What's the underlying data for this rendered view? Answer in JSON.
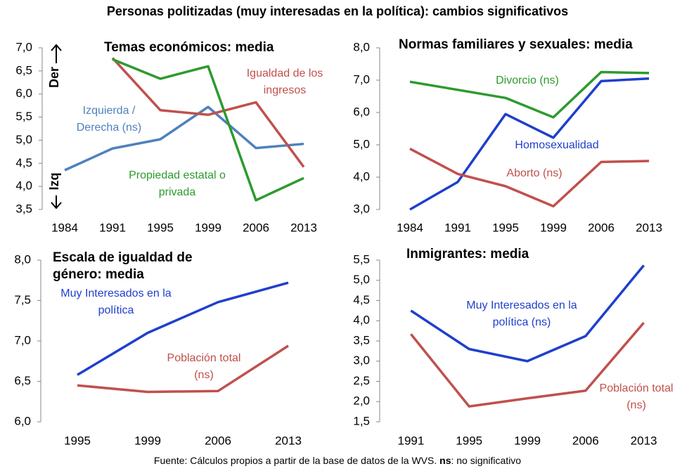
{
  "title": "Personas politizadas (muy interesadas en la política): cambios significativos",
  "chart_data": [
    {
      "type": "line",
      "title": "Temas económicos: media",
      "annotations": [
        "Der",
        "Izq"
      ],
      "categories": [
        "1984",
        "1991",
        "1995",
        "1999",
        "2006",
        "2013"
      ],
      "series": [
        {
          "name": "Izquierda / Derecha (ns)",
          "color": "#4f81bd",
          "values": [
            4.35,
            4.82,
            5.02,
            5.72,
            4.83,
            4.92
          ]
        },
        {
          "name": "Igualdad de los ingresos",
          "color": "#c0504d",
          "values": [
            null,
            6.78,
            5.65,
            5.55,
            5.82,
            4.42
          ]
        },
        {
          "name": "Propiedad estatal o privada",
          "color": "#2e9a2e",
          "values": [
            null,
            6.75,
            6.33,
            6.6,
            3.7,
            4.18
          ]
        }
      ],
      "ylim": [
        3.5,
        7.0
      ],
      "yticks": [
        {
          "value": 3.5,
          "label": "3,5"
        },
        {
          "value": 4.0,
          "label": "4,0"
        },
        {
          "value": 4.5,
          "label": "4,5"
        },
        {
          "value": 5.0,
          "label": "5,0"
        },
        {
          "value": 5.5,
          "label": "5,5"
        },
        {
          "value": 6.0,
          "label": "6,0"
        },
        {
          "value": 6.5,
          "label": "6,5"
        },
        {
          "value": 7.0,
          "label": "7,0"
        }
      ]
    },
    {
      "type": "line",
      "title": "Normas familiares y sexuales: media",
      "categories": [
        "1984",
        "1991",
        "1995",
        "1999",
        "2006",
        "2013"
      ],
      "series": [
        {
          "name": "Divorcio (ns)",
          "color": "#2e9a2e",
          "values": [
            6.95,
            6.7,
            6.45,
            5.85,
            7.25,
            7.22
          ]
        },
        {
          "name": "Homosexualidad",
          "color": "#1f3fcc",
          "values": [
            3.0,
            3.85,
            5.95,
            5.22,
            6.97,
            7.05
          ]
        },
        {
          "name": "Aborto (ns)",
          "color": "#c0504d",
          "values": [
            4.88,
            4.1,
            3.72,
            3.1,
            4.47,
            4.5
          ]
        }
      ],
      "ylim": [
        3.0,
        8.0
      ],
      "yticks": [
        {
          "value": 3.0,
          "label": "3,0"
        },
        {
          "value": 4.0,
          "label": "4,0"
        },
        {
          "value": 5.0,
          "label": "5,0"
        },
        {
          "value": 6.0,
          "label": "6,0"
        },
        {
          "value": 7.0,
          "label": "7,0"
        },
        {
          "value": 8.0,
          "label": "8,0"
        }
      ]
    },
    {
      "type": "line",
      "title": "Escala de igualdad de género: media",
      "categories": [
        "1995",
        "1999",
        "2006",
        "2013"
      ],
      "series": [
        {
          "name": "Muy Interesados en la política",
          "color": "#1f3fcc",
          "values": [
            6.58,
            7.1,
            7.48,
            7.72
          ]
        },
        {
          "name": "Población total (ns)",
          "color": "#c0504d",
          "values": [
            6.45,
            6.37,
            6.38,
            6.94
          ]
        }
      ],
      "ylim": [
        6.0,
        8.0
      ],
      "yticks": [
        {
          "value": 6.0,
          "label": "6,0"
        },
        {
          "value": 6.5,
          "label": "6,5"
        },
        {
          "value": 7.0,
          "label": "7,0"
        },
        {
          "value": 7.5,
          "label": "7,5"
        },
        {
          "value": 8.0,
          "label": "8,0"
        }
      ]
    },
    {
      "type": "line",
      "title": "Inmigrantes: media",
      "categories": [
        "1991",
        "1995",
        "1999",
        "2006",
        "2013"
      ],
      "series": [
        {
          "name": "Muy Interesados en la política (ns)",
          "color": "#1f3fcc",
          "values": [
            4.25,
            3.3,
            3.0,
            3.62,
            5.37
          ]
        },
        {
          "name": "Población total (ns)",
          "color": "#c0504d",
          "values": [
            3.67,
            1.88,
            2.08,
            2.27,
            3.95
          ]
        }
      ],
      "ylim": [
        1.5,
        5.5
      ],
      "yticks": [
        {
          "value": 1.5,
          "label": "1,5"
        },
        {
          "value": 2.0,
          "label": "2,0"
        },
        {
          "value": 2.5,
          "label": "2,5"
        },
        {
          "value": 3.0,
          "label": "3,0"
        },
        {
          "value": 3.5,
          "label": "3,5"
        },
        {
          "value": 4.0,
          "label": "4,0"
        },
        {
          "value": 4.5,
          "label": "4,5"
        },
        {
          "value": 5.0,
          "label": "5,0"
        },
        {
          "value": 5.5,
          "label": "5,5"
        }
      ]
    }
  ],
  "source": {
    "text": "Fuente: Cálculos propios a partir de la base de datos de la WVS. ",
    "bold": "ns",
    "note": ": no significativo"
  }
}
